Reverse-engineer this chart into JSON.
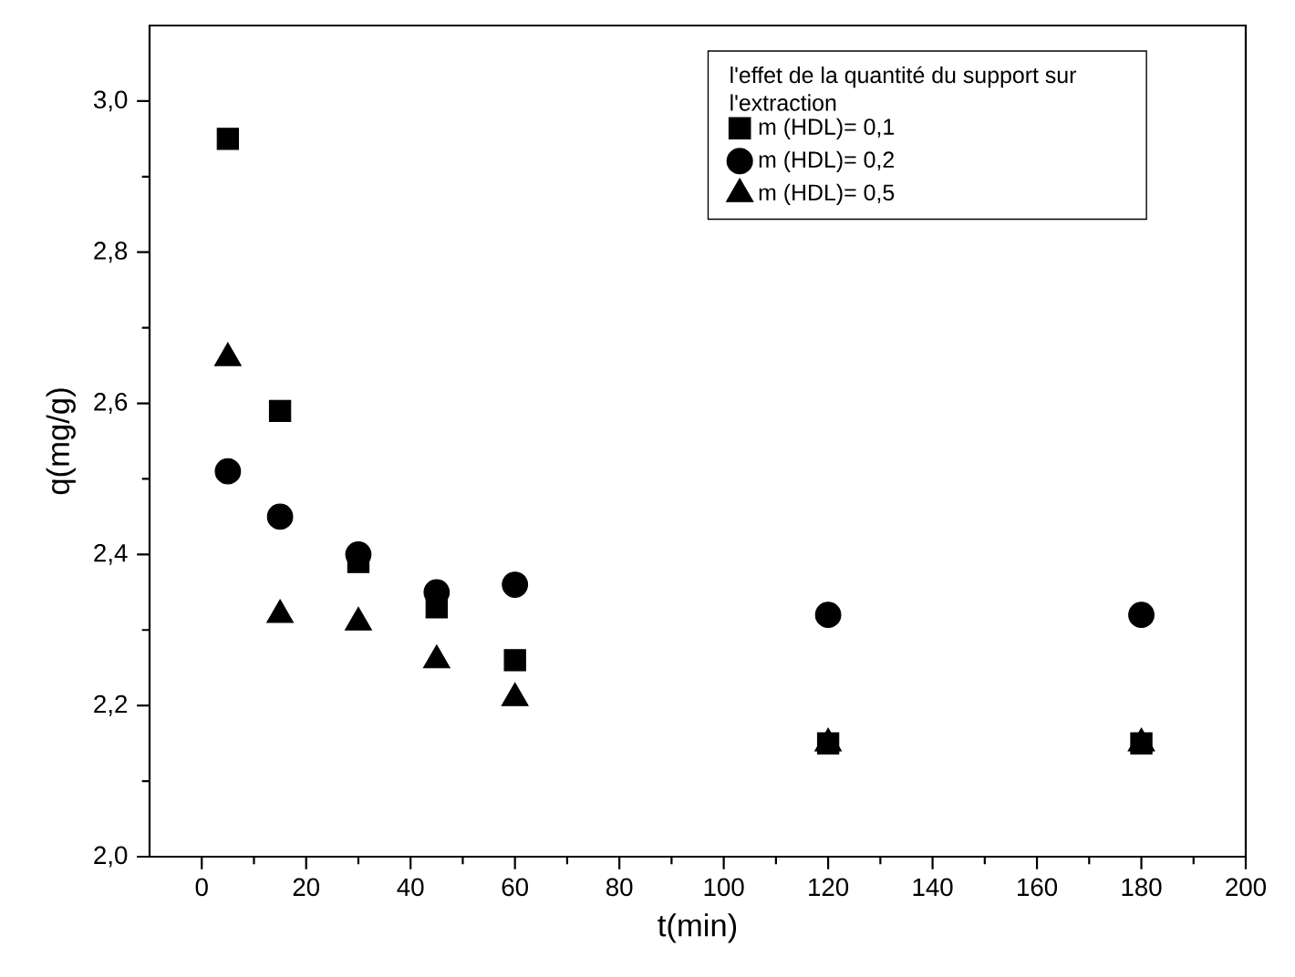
{
  "chart_data": {
    "type": "scatter",
    "xlabel": "t(min)",
    "ylabel": "q(mg/g)",
    "legend_title": "l'effet de la quantité du support sur l'extraction",
    "xlim": [
      -10,
      200
    ],
    "ylim": [
      2.0,
      3.1
    ],
    "xticks": [
      0,
      20,
      40,
      60,
      80,
      100,
      120,
      140,
      160,
      180,
      200
    ],
    "yticks": [
      {
        "value": 2.0,
        "label": "2,0"
      },
      {
        "value": 2.2,
        "label": "2,2"
      },
      {
        "value": 2.4,
        "label": "2,4"
      },
      {
        "value": 2.6,
        "label": "2,6"
      },
      {
        "value": 2.8,
        "label": "2,8"
      },
      {
        "value": 3.0,
        "label": "3,0"
      }
    ],
    "x": [
      5,
      15,
      30,
      45,
      60,
      120,
      180
    ],
    "series": [
      {
        "name": "m (HDL)= 0,1",
        "color": "#000000",
        "marker": "square",
        "values": [
          2.95,
          2.59,
          2.39,
          2.33,
          2.26,
          2.15,
          2.15
        ]
      },
      {
        "name": "m (HDL)= 0,2",
        "color": "#000000",
        "marker": "circle",
        "values": [
          2.51,
          2.45,
          2.4,
          2.35,
          2.36,
          2.32,
          2.32
        ]
      },
      {
        "name": "m (HDL)= 0,5",
        "color": "#000000",
        "marker": "triangle",
        "values": [
          2.66,
          2.32,
          2.31,
          2.26,
          2.21,
          2.15,
          2.15
        ]
      }
    ],
    "legend": "top right",
    "grid": false
  }
}
